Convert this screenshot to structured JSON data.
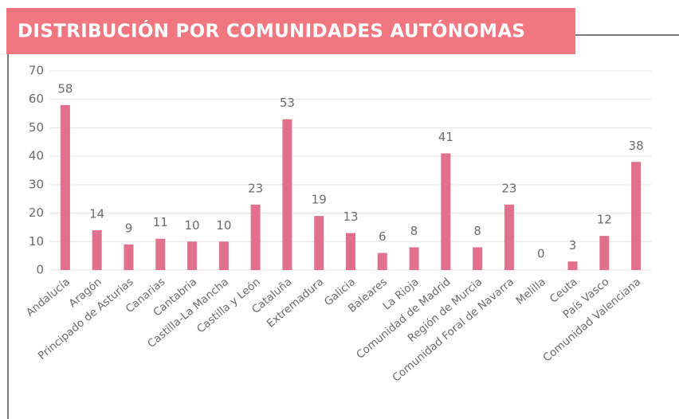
{
  "chart_data": {
    "type": "bar",
    "title": "DISTRIBUCIÓN POR COMUNIDADES AUTÓNOMAS",
    "categories": [
      "Andalucía",
      "Aragón",
      "Principado de Asturias",
      "Canarias",
      "Cantabria",
      "Castilla-La Mancha",
      "Castilla y León",
      "Cataluña",
      "Extremadura",
      "Galicia",
      "Baleares",
      "La Rioja",
      "Comunidad de Madrid",
      "Región de Murcia",
      "Comunidad Foral de Navarra",
      "Melilla",
      "Ceuta",
      "País Vasco",
      "Comunidad Valenciana"
    ],
    "values": [
      58,
      14,
      9,
      11,
      10,
      10,
      23,
      53,
      19,
      13,
      6,
      8,
      41,
      8,
      23,
      0,
      3,
      12,
      38
    ],
    "color": "#e0708c",
    "ylim": [
      0,
      70
    ],
    "yticks": [
      0,
      10,
      20,
      30,
      40,
      50,
      60,
      70
    ],
    "grid": true
  }
}
